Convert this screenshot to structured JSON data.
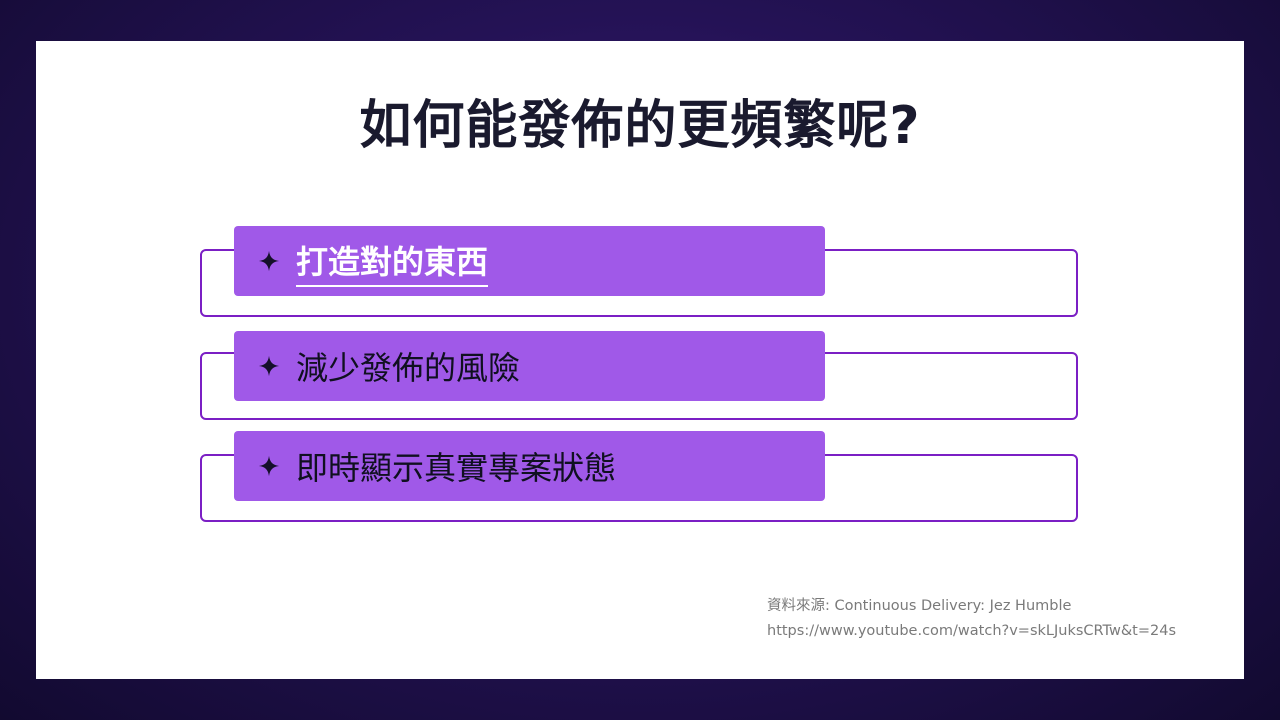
{
  "slide": {
    "title": "如何能發佈的更頻繁呢?",
    "items": [
      {
        "label": "打造對的東西",
        "icon": "sparkle-star-icon",
        "active": true
      },
      {
        "label": "減少發佈的風險",
        "icon": "sparkle-star-icon",
        "active": false
      },
      {
        "label": "即時顯示真實專案狀態",
        "icon": "sparkle-star-icon",
        "active": false
      }
    ],
    "source": {
      "line1": "資料來源: Continuous Delivery: Jez Humble",
      "line2": "https://www.youtube.com/watch?v=skLJuksCRTw&t=24s"
    }
  },
  "colors": {
    "background": "#241255",
    "slide": "#ffffff",
    "accent_fill": "#a059e8",
    "accent_border": "#7b1fc4",
    "title_text": "#1a1a2e",
    "source_text": "#7a7a7a"
  }
}
